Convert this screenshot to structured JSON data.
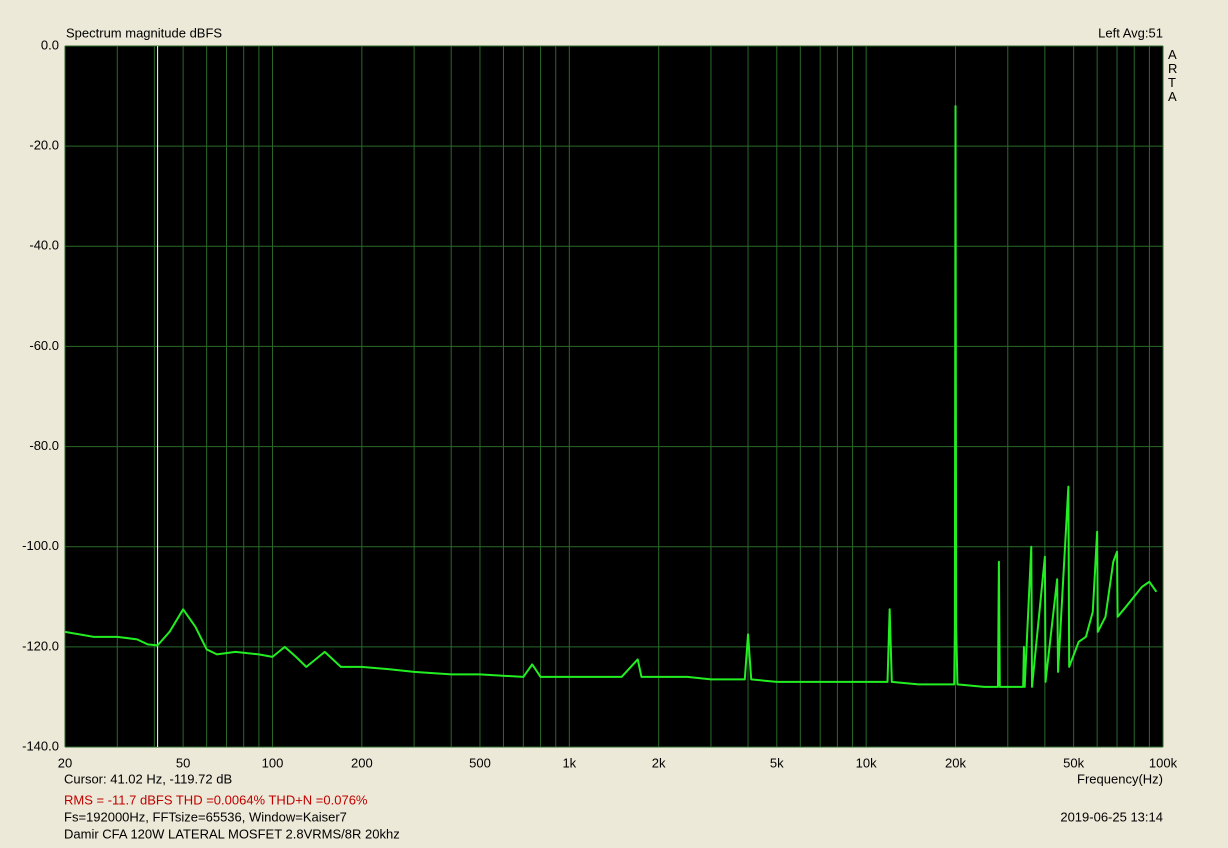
{
  "chart_data": {
    "type": "line",
    "title": "Spectrum magnitude dBFS",
    "top_right": "Left  Avg:51",
    "brand": "ARTA",
    "x_label": "Frequency(Hz)",
    "cursor": {
      "label": "Cursor: 41.02 Hz, -119.72 dB",
      "x": 41.02,
      "color": "#ffffff"
    },
    "stats": "RMS =  -11.7 dBFS   THD =0.0064%   THD+N =0.076%",
    "settings": "Fs=192000Hz, FFTsize=65536, Window=Kaiser7",
    "description": "Damir CFA 120W LATERAL MOSFET 2.8VRMS/8R 20khz",
    "date": "2019-06-25  13:14",
    "x_scale": "log",
    "grid": true,
    "xlim": [
      20,
      100000
    ],
    "ylim": [
      -140,
      0
    ],
    "xticks": [
      20,
      50,
      100,
      200,
      500,
      {
        "value": 1000,
        "label": "1k"
      },
      {
        "value": 2000,
        "label": "2k"
      },
      {
        "value": 5000,
        "label": "5k"
      },
      {
        "value": 10000,
        "label": "10k"
      },
      {
        "value": 20000,
        "label": "20k"
      },
      {
        "value": 50000,
        "label": "50k"
      },
      {
        "value": 100000,
        "label": "100k"
      }
    ],
    "x_minor_ticks": [
      30,
      40,
      60,
      70,
      80,
      90,
      300,
      400,
      600,
      700,
      800,
      900,
      3000,
      4000,
      6000,
      7000,
      8000,
      9000,
      30000,
      40000,
      60000,
      70000,
      80000,
      90000
    ],
    "yticks": [
      {
        "value": 0,
        "label": "0.0"
      },
      {
        "value": -20,
        "label": "-20.0"
      },
      {
        "value": -40,
        "label": "-40.0"
      },
      {
        "value": -60,
        "label": "-60.0"
      },
      {
        "value": -80,
        "label": "-80.0"
      },
      {
        "value": -100,
        "label": "-100.0"
      },
      {
        "value": -120,
        "label": "-120.0"
      },
      {
        "value": -140,
        "label": "-140.0"
      }
    ],
    "x": [
      20,
      25,
      30,
      35,
      38,
      41,
      45,
      50,
      55,
      60,
      65,
      75,
      90,
      100,
      110,
      120,
      130,
      150,
      170,
      200,
      250,
      300,
      400,
      500,
      700,
      750,
      800,
      1000,
      1500,
      1700,
      1750,
      2000,
      2500,
      3000,
      3900,
      4000,
      4100,
      5000,
      7000,
      10000,
      11800,
      12000,
      12200,
      15000,
      19800,
      19900,
      20000,
      20100,
      20300,
      25000,
      27800,
      28000,
      28200,
      32000,
      33800,
      34000,
      34200,
      36000,
      36200,
      40000,
      40200,
      44000,
      44300,
      48000,
      48300,
      52000,
      55000,
      58000,
      60000,
      60300,
      64000,
      68000,
      70000,
      70300,
      75000,
      85000,
      90000,
      95000
    ],
    "series": [
      {
        "name": "Left",
        "color": "#22ee22",
        "values": [
          -117,
          -118,
          -118,
          -118.5,
          -119.5,
          -119.7,
          -117,
          -112.5,
          -116,
          -120.5,
          -121.5,
          -121,
          -121.5,
          -122,
          -120,
          -122,
          -124,
          -121,
          -124,
          -124,
          -124.5,
          -125,
          -125.5,
          -125.5,
          -126,
          -123.5,
          -126,
          -126,
          -126,
          -122.5,
          -126,
          -126,
          -126,
          -126.5,
          -126.5,
          -117.5,
          -126.5,
          -127,
          -127,
          -127,
          -127,
          -112.5,
          -127,
          -127.5,
          -127.5,
          -116,
          -12,
          -116,
          -127.5,
          -128,
          -128,
          -103,
          -128,
          -128,
          -128,
          -120,
          -128,
          -100,
          -128,
          -102,
          -127,
          -106.5,
          -125,
          -88,
          -124,
          -119,
          -118,
          -113,
          -97,
          -117,
          -114,
          -103,
          -101,
          -114,
          -112,
          -108,
          -107,
          -109
        ]
      }
    ]
  }
}
